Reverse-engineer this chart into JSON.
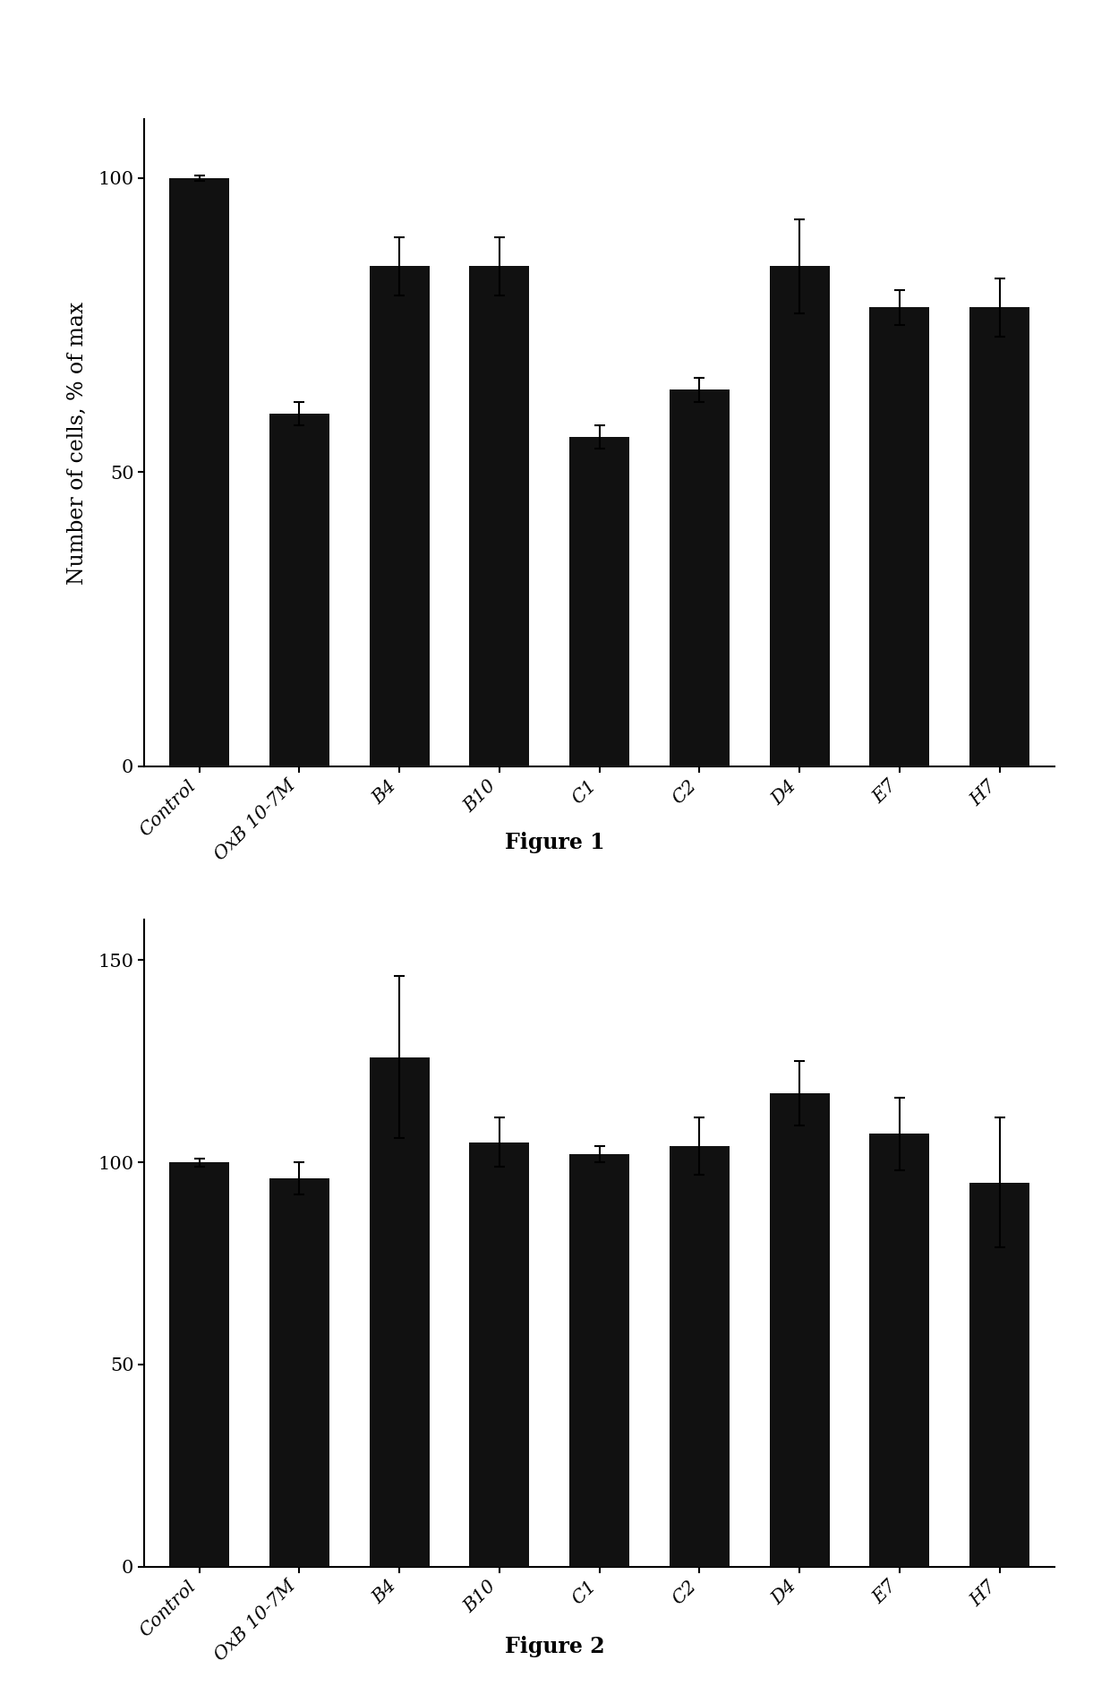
{
  "fig1": {
    "categories": [
      "Control",
      "OxB 10-7M",
      "B4",
      "B10",
      "C1",
      "C2",
      "D4",
      "E7",
      "H7"
    ],
    "values": [
      100,
      60,
      85,
      85,
      56,
      64,
      85,
      78,
      78
    ],
    "errors": [
      0.5,
      2,
      5,
      5,
      2,
      2,
      8,
      3,
      5
    ],
    "ylabel": "Number of cells, % of max",
    "ylim": [
      0,
      110
    ],
    "yticks": [
      0,
      50,
      100
    ],
    "caption": "Figure 1"
  },
  "fig2": {
    "categories": [
      "Control",
      "OxB 10-7M",
      "B4",
      "B10",
      "C1",
      "C2",
      "D4",
      "E7",
      "H7"
    ],
    "values": [
      100,
      96,
      126,
      105,
      102,
      104,
      117,
      107,
      95
    ],
    "errors": [
      1,
      4,
      20,
      6,
      2,
      7,
      8,
      9,
      16
    ],
    "ylim": [
      0,
      160
    ],
    "yticks": [
      0,
      50,
      100,
      150
    ],
    "caption": "Figure 2"
  },
  "bar_color": "#111111",
  "bar_width": 0.6,
  "tick_fontsize": 15,
  "label_fontsize": 17,
  "caption_fontsize": 17,
  "background_color": "#ffffff"
}
